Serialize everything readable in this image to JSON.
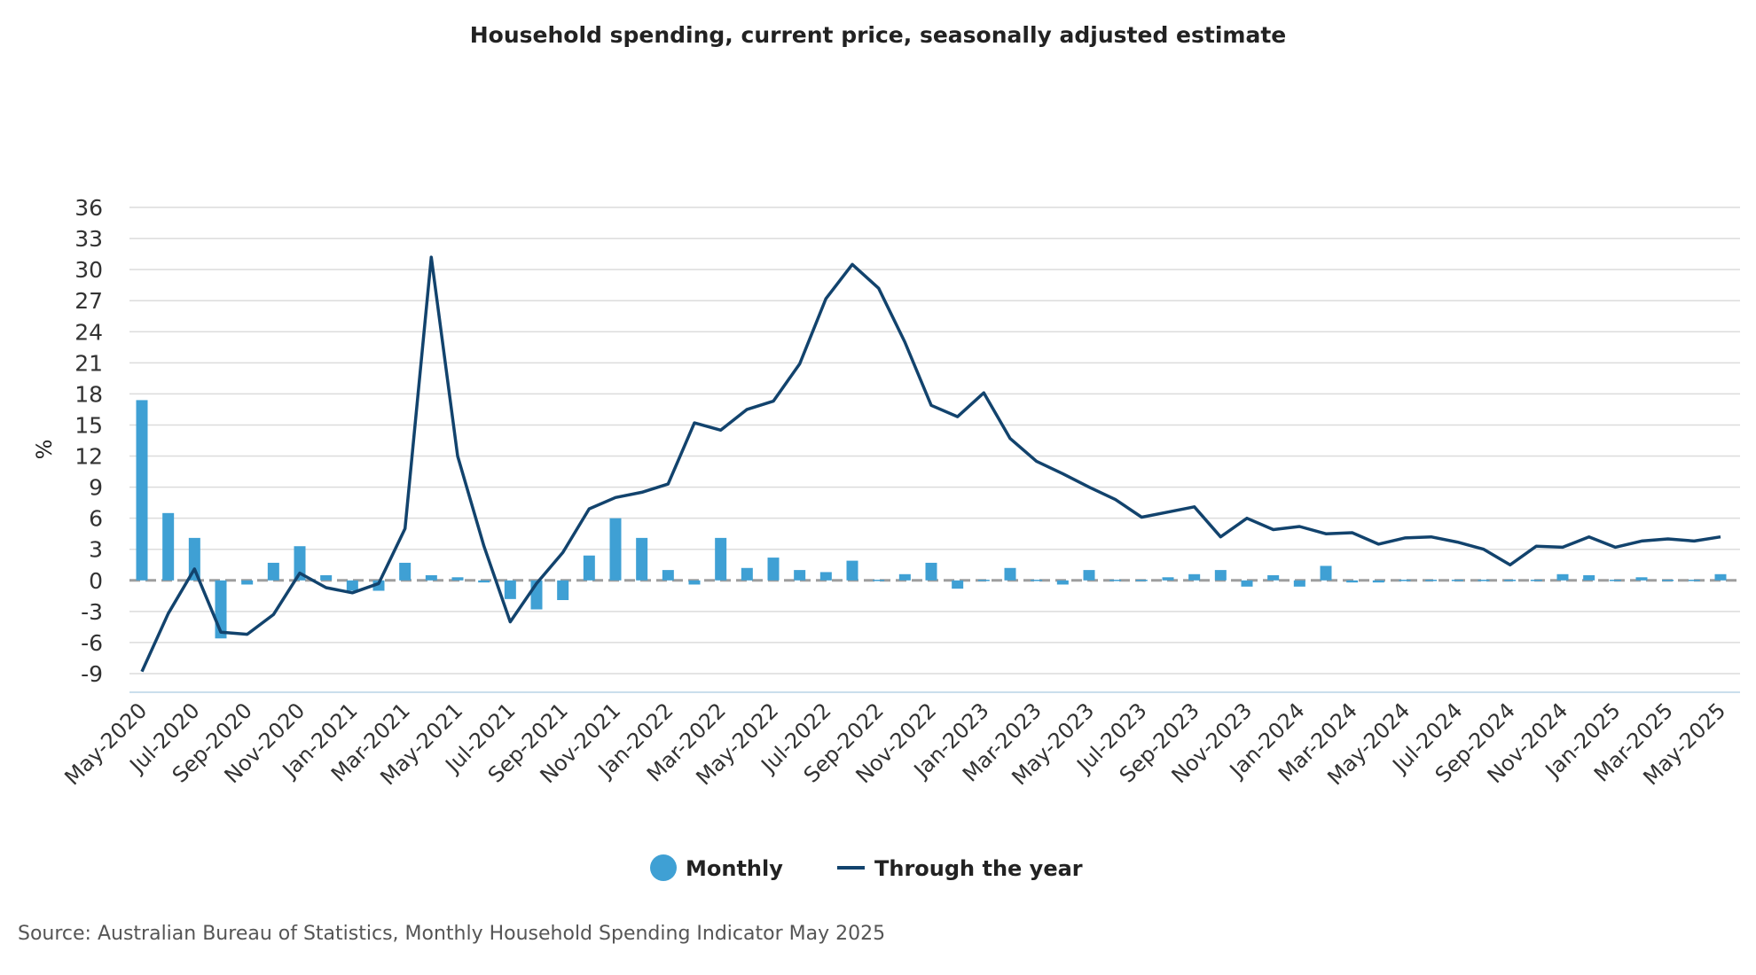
{
  "chart_data": {
    "type": "bar+line",
    "title": "Household spending, current price, seasonally adjusted estimate",
    "ylabel": "%",
    "xlabel": "",
    "ylim": [
      -9,
      36
    ],
    "yticks": [
      36,
      33,
      30,
      27,
      24,
      21,
      18,
      15,
      12,
      9,
      6,
      3,
      0,
      -3,
      -6,
      -9
    ],
    "grid": true,
    "legend_position": "bottom-center",
    "colors": {
      "monthly": "#3fa0d4",
      "through_year": "#12436d",
      "zero_line": "#9e9e9e",
      "grid": "#dcdcdc"
    },
    "categories": [
      "May-2020",
      "Jun-2020",
      "Jul-2020",
      "Aug-2020",
      "Sep-2020",
      "Oct-2020",
      "Nov-2020",
      "Dec-2020",
      "Jan-2021",
      "Feb-2021",
      "Mar-2021",
      "Apr-2021",
      "May-2021",
      "Jun-2021",
      "Jul-2021",
      "Aug-2021",
      "Sep-2021",
      "Oct-2021",
      "Nov-2021",
      "Dec-2021",
      "Jan-2022",
      "Feb-2022",
      "Mar-2022",
      "Apr-2022",
      "May-2022",
      "Jun-2022",
      "Jul-2022",
      "Aug-2022",
      "Sep-2022",
      "Oct-2022",
      "Nov-2022",
      "Dec-2022",
      "Jan-2023",
      "Feb-2023",
      "Mar-2023",
      "Apr-2023",
      "May-2023",
      "Jun-2023",
      "Jul-2023",
      "Aug-2023",
      "Sep-2023",
      "Oct-2023",
      "Nov-2023",
      "Dec-2023",
      "Jan-2024",
      "Feb-2024",
      "Mar-2024",
      "Apr-2024",
      "May-2024",
      "Jun-2024",
      "Jul-2024",
      "Aug-2024",
      "Sep-2024",
      "Oct-2024",
      "Nov-2024",
      "Dec-2024",
      "Jan-2025",
      "Feb-2025",
      "Mar-2025",
      "Apr-2025",
      "May-2025"
    ],
    "xtick_labels": [
      "May-2020",
      "Jul-2020",
      "Sep-2020",
      "Nov-2020",
      "Jan-2021",
      "Mar-2021",
      "May-2021",
      "Jul-2021",
      "Sep-2021",
      "Nov-2021",
      "Jan-2022",
      "Mar-2022",
      "May-2022",
      "Jul-2022",
      "Sep-2022",
      "Nov-2022",
      "Jan-2023",
      "Mar-2023",
      "May-2023",
      "Jul-2023",
      "Sep-2023",
      "Nov-2023",
      "Jan-2024",
      "Mar-2024",
      "May-2024",
      "Jul-2024",
      "Sep-2024",
      "Nov-2024",
      "Jan-2025",
      "Mar-2025",
      "May-2025"
    ],
    "series": [
      {
        "name": "Monthly",
        "type": "bar",
        "values": [
          17.4,
          6.5,
          4.1,
          -5.6,
          -0.4,
          1.7,
          3.3,
          0.5,
          -1.0,
          -1.0,
          1.7,
          0.5,
          0.3,
          -0.2,
          -1.8,
          -2.8,
          -1.9,
          2.4,
          6.0,
          4.1,
          1.0,
          -0.4,
          4.1,
          1.2,
          2.2,
          1.0,
          0.8,
          1.9,
          0.1,
          0.6,
          1.7,
          -0.8,
          0.1,
          1.2,
          0.1,
          -0.4,
          1.0,
          0.1,
          0.0,
          0.3,
          0.6,
          1.0,
          -0.6,
          0.5,
          -0.6,
          1.4,
          -0.2,
          -0.2,
          0.1,
          0.1,
          0.0,
          0.0,
          0.0,
          0.1,
          0.6,
          0.5,
          0.1,
          0.3,
          0.0,
          0.0,
          0.6
        ]
      },
      {
        "name": "Through the year",
        "type": "line",
        "values": [
          -8.8,
          -3.2,
          1.1,
          -5.0,
          -5.2,
          -3.3,
          0.7,
          -0.7,
          -1.2,
          -0.3,
          5.0,
          31.2,
          12.0,
          3.3,
          -4.0,
          -0.3,
          2.7,
          6.9,
          8.0,
          8.5,
          9.3,
          15.2,
          14.5,
          16.5,
          17.3,
          20.9,
          27.2,
          30.5,
          28.2,
          23.0,
          16.9,
          15.8,
          18.1,
          13.7,
          11.5,
          10.3,
          9.0,
          7.8,
          6.1,
          6.6,
          7.1,
          4.2,
          6.0,
          4.9,
          5.2,
          4.5,
          4.6,
          3.5,
          4.1,
          4.2,
          3.7,
          3.0,
          1.5,
          3.3,
          3.2,
          4.2,
          3.2,
          3.8,
          4.0,
          3.8,
          4.2
        ]
      }
    ]
  },
  "legend": [
    {
      "label": "Monthly"
    },
    {
      "label": "Through the year"
    }
  ],
  "source": "Source: Australian Bureau of Statistics, Monthly Household Spending Indicator May 2025"
}
